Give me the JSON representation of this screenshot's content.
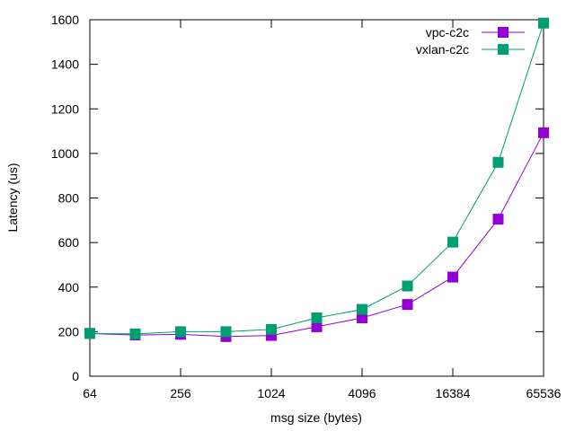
{
  "chart_data": {
    "type": "line",
    "xlabel": "msg size (bytes)",
    "ylabel": "Latency (us)",
    "x_scale": "log2",
    "xlim": [
      64,
      65536
    ],
    "ylim": [
      0,
      1600
    ],
    "x_ticks": [
      "64",
      "256",
      "1024",
      "4096",
      "16384",
      "65536"
    ],
    "y_ticks": [
      "0",
      "200",
      "400",
      "600",
      "800",
      "1000",
      "1200",
      "1400",
      "1600"
    ],
    "legend_position": "top-right",
    "grid": false,
    "x": [
      64,
      128,
      256,
      512,
      1024,
      2048,
      4096,
      8192,
      16384,
      32768,
      65536
    ],
    "series": [
      {
        "name": "vpc-c2c",
        "color": "#9400d3",
        "values": [
          192,
          185,
          188,
          178,
          183,
          222,
          262,
          322,
          445,
          705,
          1093
        ]
      },
      {
        "name": "vxlan-c2c",
        "color": "#009e73",
        "values": [
          192,
          190,
          200,
          200,
          210,
          262,
          300,
          405,
          602,
          960,
          1585
        ]
      }
    ]
  }
}
